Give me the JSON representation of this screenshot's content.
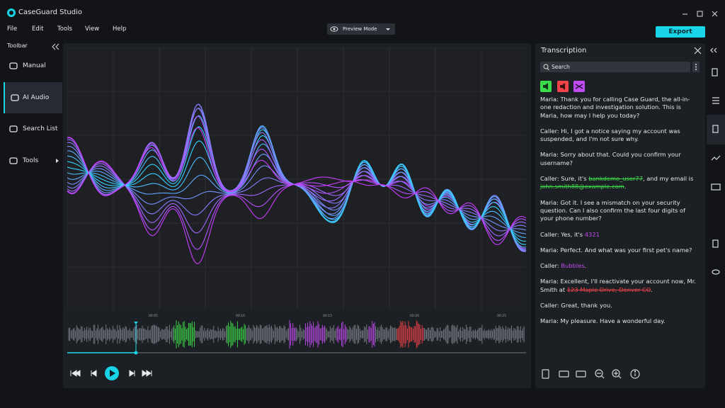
{
  "app_title": "CaseGuard Studio",
  "menu": [
    "File",
    "Edit",
    "Tools",
    "View",
    "Help"
  ],
  "preview_mode": "Preview Mode",
  "export_button": "Export",
  "toolbar": {
    "title": "Toolbar",
    "items": [
      "Manual",
      "AI Audio",
      "Search List",
      "Tools"
    ],
    "selected": 1
  },
  "timeline_labels": [
    "00:05",
    "00:10",
    "00:15",
    "00:20",
    "00:25"
  ],
  "transcription": {
    "title": "Transcription",
    "search_placeholder": "Search",
    "lines": [
      {
        "parts": [
          "Maria: Thank you for calling Case Guard, the all-in-one redaction and investigation solution. This is Maria, how may I help you today?"
        ]
      },
      {
        "parts": [
          "Caller: Hi, I got a notice saying my account was suspended, and I'm not sure why."
        ]
      },
      {
        "parts": [
          "Maria: Sorry about that. Could you confirm your username?"
        ]
      },
      {
        "parts": [
          "Caller: Sure, it's ",
          {
            "text": "bankdemo_user77",
            "color": "#3ddc4a",
            "strike": true
          },
          ", and my email is ",
          {
            "text": "john.smith88@example.com",
            "color": "#3ddc4a",
            "strike": true
          },
          "."
        ]
      },
      {
        "parts": [
          "Maria: Got it. I see a mismatch on your security question. Can I also confirm the last four digits of your phone number?"
        ]
      },
      {
        "parts": [
          "Caller: Yes, it's ",
          {
            "text": "4321",
            "color": "#c04cf0",
            "strike": false
          }
        ]
      },
      {
        "parts": [
          "Maria: Perfect. And what was your first pet's name?"
        ]
      },
      {
        "parts": [
          "Caller: ",
          {
            "text": "Bubbles",
            "color": "#c04cf0",
            "strike": false
          },
          "."
        ]
      },
      {
        "parts": [
          "Maria: Excellent, I'll reactivate your account now, Mr. Smith at ",
          {
            "text": "123 Maple Drive, Denver CO",
            "color": "#f0444a",
            "strike": true
          },
          "."
        ]
      },
      {
        "parts": [
          "Caller: Great, thank you."
        ]
      },
      {
        "parts": [
          "Maria: My pleasure. Have a wonderful day."
        ]
      }
    ]
  }
}
